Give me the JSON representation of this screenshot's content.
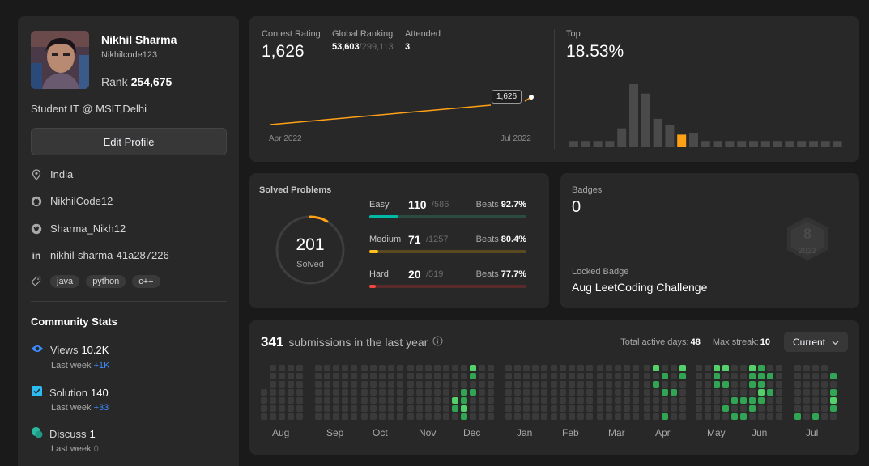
{
  "profile": {
    "name": "Nikhil Sharma",
    "username": "Nikhilcode123",
    "rank_label": "Rank",
    "rank_value": "254,675",
    "bio": "Student IT @ MSIT,Delhi",
    "edit_label": "Edit Profile",
    "location": "India",
    "github": "NikhilCode12",
    "twitter": "Sharma_Nikh12",
    "linkedin": "nikhil-sharma-41a287226",
    "skills": [
      "java",
      "python",
      "c++"
    ]
  },
  "community": {
    "title": "Community Stats",
    "views": {
      "label": "Views",
      "value": "10.2K",
      "sub_label": "Last week",
      "sub_value": "+1K"
    },
    "solution": {
      "label": "Solution",
      "value": "140",
      "sub_label": "Last week",
      "sub_value": "+33"
    },
    "discuss": {
      "label": "Discuss",
      "value": "1",
      "sub_label": "Last week",
      "sub_value": "0"
    }
  },
  "contest": {
    "rating_label": "Contest Rating",
    "rating_value": "1,626",
    "global_label": "Global Ranking",
    "global_value": "53,603",
    "global_total": "/299,113",
    "attended_label": "Attended",
    "attended_value": "3",
    "tooltip": "1,626",
    "x_start": "Apr 2022",
    "x_end": "Jul 2022",
    "top_label": "Top",
    "top_value": "18.53%",
    "hist_values": [
      1,
      1,
      1,
      1,
      3,
      10,
      8.5,
      4.5,
      3.5,
      2,
      2.2,
      1,
      1,
      1,
      1,
      1,
      1,
      1,
      1,
      1,
      1,
      1,
      1
    ],
    "hist_highlight": 9,
    "colors": {
      "line": "#ffa116",
      "highlight": "#ffa116",
      "bar": "#4a4a4a"
    }
  },
  "solved": {
    "title": "Solved Problems",
    "total": "201",
    "total_label": "Solved",
    "ring_fraction": 0.085,
    "rows": [
      {
        "name": "Easy",
        "count": "110",
        "total": "/586",
        "beats_label": "Beats",
        "beats": "92.7%",
        "fraction": 0.188,
        "color": "#00b8a3",
        "track": "#2b4b3f"
      },
      {
        "name": "Medium",
        "count": "71",
        "total": "/1257",
        "beats_label": "Beats",
        "beats": "80.4%",
        "fraction": 0.056,
        "color": "#ffc01e",
        "track": "#5a4a20"
      },
      {
        "name": "Hard",
        "count": "20",
        "total": "/519",
        "beats_label": "Beats",
        "beats": "77.7%",
        "fraction": 0.039,
        "color": "#ef4743",
        "track": "#5a2a2a"
      }
    ]
  },
  "badges": {
    "title": "Badges",
    "count": "0",
    "locked_label": "Locked Badge",
    "locked_name": "Aug LeetCoding Challenge",
    "badge_digit": "8",
    "badge_year": "2022"
  },
  "submissions": {
    "count": "341",
    "title": "submissions in the last year",
    "active_label": "Total active days:",
    "active_value": "48",
    "streak_label": "Max streak:",
    "streak_value": "10",
    "filter": "Current",
    "months": [
      "Aug",
      "Sep",
      "Oct",
      "Nov",
      "Dec",
      "Jan",
      "Feb",
      "Mar",
      "Apr",
      "May",
      "Jun",
      "Jul"
    ],
    "levels": {
      "0": "#3a3a3a",
      "1": "#0e4429",
      "2": "#1d6b3d",
      "3": "#31a553",
      "4": "#54d16b"
    }
  }
}
